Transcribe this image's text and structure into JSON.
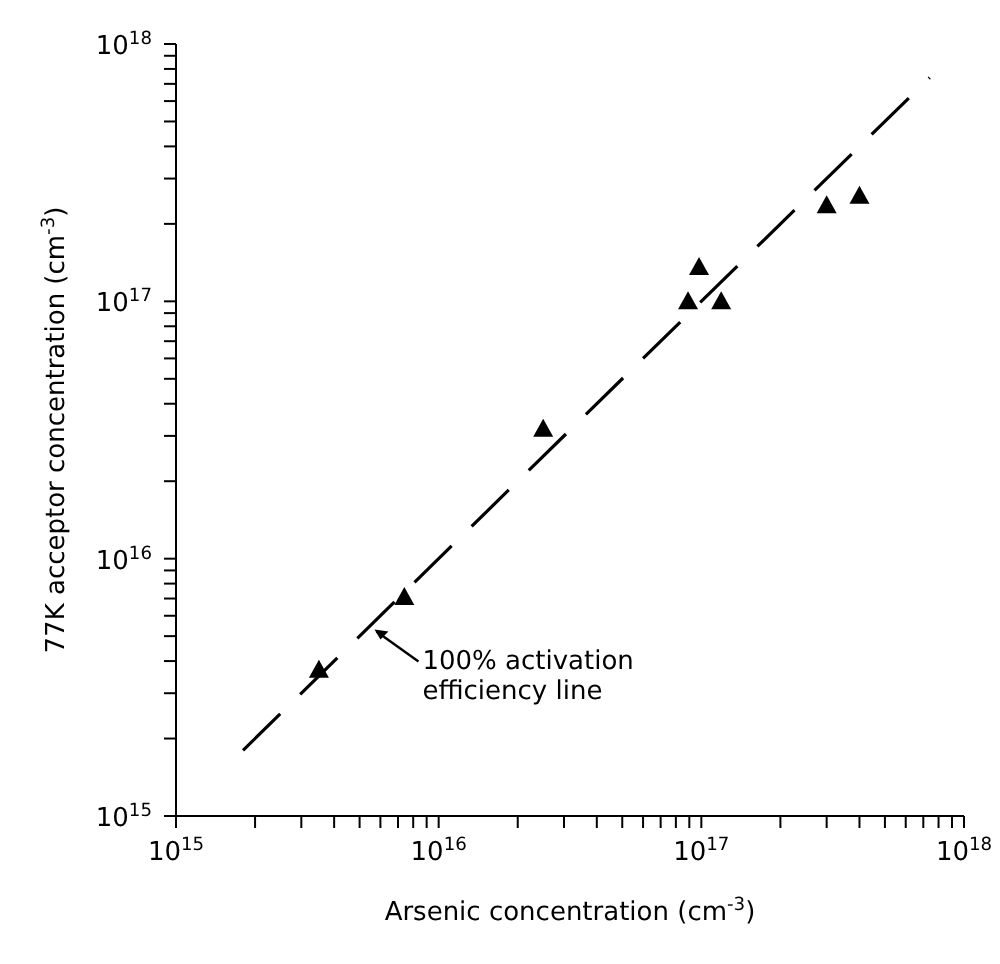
{
  "chart_data": {
    "type": "scatter",
    "xlabel": "Arsenic concentration (cm$^{-3}$)",
    "ylabel": "77K acceptor concentration (cm$^{-3}$)",
    "log": "xy",
    "marker": "triangle",
    "xlim": [
      1000000000000000.0,
      1e+18
    ],
    "ylim": [
      1000000000000000.0,
      1e+18
    ],
    "xticks": [
      {
        "value": 1000000000000000.0,
        "label": "10$^{15}$"
      },
      {
        "value": 2000000000000000.0,
        "label": null
      },
      {
        "value": 3000000000000000.0,
        "label": null
      },
      {
        "value": 4000000000000000.0,
        "label": null
      },
      {
        "value": 5000000000000000.0,
        "label": null
      },
      {
        "value": 6000000000000000.0,
        "label": null
      },
      {
        "value": 7000000000000000.0,
        "label": null
      },
      {
        "value": 8000000000000000.0,
        "label": null
      },
      {
        "value": 9000000000000000.0,
        "label": null
      },
      {
        "value": 1e+16,
        "label": "10$^{16}$"
      },
      {
        "value": 2e+16,
        "label": null
      },
      {
        "value": 3e+16,
        "label": null
      },
      {
        "value": 4e+16,
        "label": null
      },
      {
        "value": 5e+16,
        "label": null
      },
      {
        "value": 6e+16,
        "label": null
      },
      {
        "value": 7e+16,
        "label": null
      },
      {
        "value": 8e+16,
        "label": null
      },
      {
        "value": 9e+16,
        "label": null
      },
      {
        "value": 1e+17,
        "label": "10$^{17}$"
      },
      {
        "value": 2e+17,
        "label": null
      },
      {
        "value": 3e+17,
        "label": null
      },
      {
        "value": 4e+17,
        "label": null
      },
      {
        "value": 5e+17,
        "label": null
      },
      {
        "value": 6e+17,
        "label": null
      },
      {
        "value": 7e+17,
        "label": null
      },
      {
        "value": 8e+17,
        "label": null
      },
      {
        "value": 9e+17,
        "label": null
      },
      {
        "value": 1e+18,
        "label": "10$^{18}$"
      }
    ],
    "yticks": [
      {
        "value": 1000000000000000.0,
        "label": "10$^{15}$"
      },
      {
        "value": 2000000000000000.0,
        "label": null
      },
      {
        "value": 3000000000000000.0,
        "label": null
      },
      {
        "value": 4000000000000000.0,
        "label": null
      },
      {
        "value": 5000000000000000.0,
        "label": null
      },
      {
        "value": 6000000000000000.0,
        "label": null
      },
      {
        "value": 7000000000000000.0,
        "label": null
      },
      {
        "value": 8000000000000000.0,
        "label": null
      },
      {
        "value": 9000000000000000.0,
        "label": null
      },
      {
        "value": 1e+16,
        "label": "10$^{16}$"
      },
      {
        "value": 2e+16,
        "label": null
      },
      {
        "value": 3e+16,
        "label": null
      },
      {
        "value": 4e+16,
        "label": null
      },
      {
        "value": 5e+16,
        "label": null
      },
      {
        "value": 6e+16,
        "label": null
      },
      {
        "value": 7e+16,
        "label": null
      },
      {
        "value": 8e+16,
        "label": null
      },
      {
        "value": 9e+16,
        "label": null
      },
      {
        "value": 1e+17,
        "label": "10$^{17}$"
      },
      {
        "value": 2e+17,
        "label": null
      },
      {
        "value": 3e+17,
        "label": null
      },
      {
        "value": 4e+17,
        "label": null
      },
      {
        "value": 5e+17,
        "label": null
      },
      {
        "value": 6e+17,
        "label": null
      },
      {
        "value": 7e+17,
        "label": null
      },
      {
        "value": 8e+17,
        "label": null
      },
      {
        "value": 9e+17,
        "label": null
      },
      {
        "value": 1e+18,
        "label": "10$^{18}$"
      }
    ],
    "series": [
      {
        "color": "#000000",
        "x": [
          3500000000000000.0,
          7400000000000000.0,
          2.5e+16,
          8.9e+16,
          9.8e+16,
          1.19e+17,
          3e+17,
          4e+17
        ],
        "values": [
          3700000000000000.0,
          7100000000000000.0,
          3.2e+16,
          1e+17,
          1.36e+17,
          1e+17,
          2.36e+17,
          2.57e+17
        ]
      },
      {
        "type": "line",
        "color": "#000000",
        "line_style": "dashed",
        "marker": "none",
        "x": [
          1800000000000000.0,
          7.4e+17
        ],
        "values": [
          1800000000000000.0,
          7.4e+17
        ]
      }
    ],
    "annotations": [
      {
        "text": "100% activation efficiency line",
        "x": 5500000000000000.0,
        "y": 5500000000000000.0
      }
    ]
  }
}
